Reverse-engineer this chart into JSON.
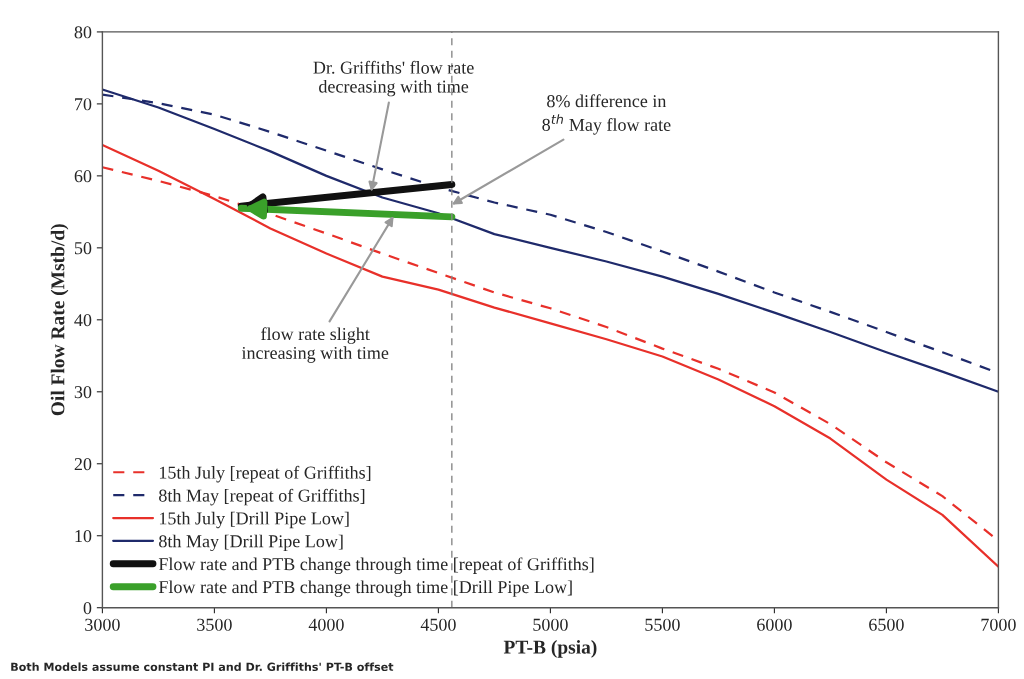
{
  "chart_data": {
    "type": "line",
    "xlabel": "PT-B (psia)",
    "ylabel": "Oil Flow Rate (Mstb/d)",
    "xlim": [
      3000,
      7000
    ],
    "xticks": [
      3000,
      3500,
      4000,
      4500,
      5000,
      5500,
      6000,
      6500,
      7000
    ],
    "ylim": [
      0,
      80
    ],
    "yticks": [
      0,
      10,
      20,
      30,
      40,
      50,
      60,
      70,
      80
    ],
    "grid": false,
    "legend": "bottom left",
    "series": [
      {
        "name": "15th July [repeat of Griffiths]",
        "color": "#e8302a",
        "line_style": "dashed",
        "x": [
          3000,
          3250,
          3500,
          3750,
          4000,
          4250,
          4500,
          4750,
          5000,
          5250,
          5500,
          5750,
          6000,
          6250,
          6500,
          6750,
          7000
        ],
        "values": [
          61.2,
          59.3,
          57.2,
          54.7,
          52,
          49.2,
          46.5,
          43.8,
          41.6,
          39,
          36,
          33.2,
          29.9,
          25.5,
          20.2,
          15.5,
          9.3
        ]
      },
      {
        "name": "8th May [repeat of Griffiths]",
        "color": "#1f2a6b",
        "line_style": "dashed",
        "x": [
          3000,
          3250,
          3500,
          3750,
          4000,
          4250,
          4500,
          4750,
          5000,
          5250,
          5500,
          5750,
          6000,
          6250,
          6500,
          6750,
          7000
        ],
        "values": [
          71.3,
          70.1,
          68.5,
          66.1,
          63.5,
          60.9,
          58.4,
          56.3,
          54.6,
          52.2,
          49.5,
          46.7,
          43.8,
          41.1,
          38.3,
          35.5,
          32.6
        ]
      },
      {
        "name": "15th July [Drill Pipe Low]",
        "color": "#e8302a",
        "line_style": "solid",
        "x": [
          3000,
          3250,
          3500,
          3750,
          4000,
          4250,
          4500,
          4750,
          5000,
          5250,
          5500,
          5750,
          6000,
          6250,
          6500,
          6750,
          7000
        ],
        "values": [
          64.3,
          60.7,
          56.8,
          52.7,
          49.2,
          46,
          44.2,
          41.7,
          39.5,
          37.3,
          34.9,
          31.7,
          28,
          23.5,
          17.8,
          12.9,
          5.7
        ]
      },
      {
        "name": "8th May [Drill Pipe Low]",
        "color": "#1f2a6b",
        "line_style": "solid",
        "x": [
          3000,
          3250,
          3500,
          3750,
          4000,
          4250,
          4500,
          4750,
          5000,
          5250,
          5500,
          5750,
          6000,
          6250,
          6500,
          6750,
          7000
        ],
        "values": [
          72,
          69.5,
          66.5,
          63.4,
          60,
          57,
          54.8,
          51.9,
          50,
          48.1,
          46,
          43.6,
          41,
          38.3,
          35.5,
          32.8,
          30
        ]
      },
      {
        "name": "Flow rate and PTB change through time [repeat of Griffiths]",
        "color": "#111111",
        "line_style": "solid",
        "x": [
          4560,
          3620
        ],
        "values": [
          58.8,
          55.8
        ]
      },
      {
        "name": "Flow rate and PTB change through time [Drill Pipe Low]",
        "color": "#3aa02a",
        "line_style": "solid",
        "x": [
          4560,
          3620
        ],
        "values": [
          54.3,
          55.5
        ]
      }
    ],
    "ref_lines": [
      {
        "axis": "x",
        "value": 4560,
        "color": "#888888",
        "line_style": "dashed"
      }
    ],
    "annotations": [
      {
        "text": "Dr. Griffiths' flow rate\ndecreasing with time",
        "x": 4200,
        "y": 57.8
      },
      {
        "text": "8% difference in\n8$^{th}$ May flow rate",
        "x": 4560,
        "y": 56.0
      },
      {
        "text": "flow rate slight\nincreasing with time",
        "x": 4300,
        "y": 54.4
      },
      "Both Models assume constant PI and Dr. Griffiths' PT-B offset"
    ]
  }
}
